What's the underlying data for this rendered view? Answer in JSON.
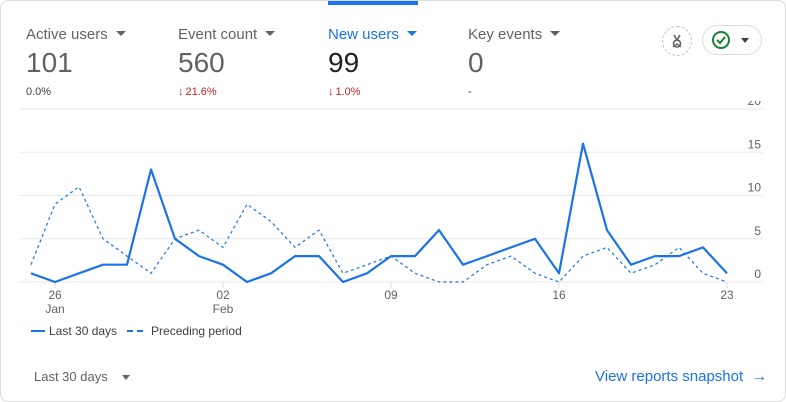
{
  "metrics": [
    {
      "label": "Active users",
      "value": "101",
      "change": "0.0%",
      "direction": "neutral",
      "selected": false
    },
    {
      "label": "Event count",
      "value": "560",
      "change": "21.6%",
      "direction": "down",
      "selected": false
    },
    {
      "label": "New users",
      "value": "99",
      "change": "1.0%",
      "direction": "down",
      "selected": true
    },
    {
      "label": "Key events",
      "value": "0",
      "change": "-",
      "direction": "neutral",
      "selected": false
    }
  ],
  "icons": {
    "insights": "insights-sparkle-icon",
    "status": "check-circle-icon",
    "change_down": "↓",
    "link_arrow": "→"
  },
  "colors": {
    "accent": "#1a73e8",
    "negative": "#c5221f",
    "status_ok": "#188038"
  },
  "chart_data": {
    "type": "line",
    "x": [
      "Jan 25",
      "Jan 26",
      "Jan 27",
      "Jan 28",
      "Jan 29",
      "Jan 30",
      "Jan 31",
      "Feb 01",
      "Feb 02",
      "Feb 03",
      "Feb 04",
      "Feb 05",
      "Feb 06",
      "Feb 07",
      "Feb 08",
      "Feb 09",
      "Feb 10",
      "Feb 11",
      "Feb 12",
      "Feb 13",
      "Feb 14",
      "Feb 15",
      "Feb 16",
      "Feb 17",
      "Feb 18",
      "Feb 19",
      "Feb 20",
      "Feb 21",
      "Feb 22",
      "Feb 23"
    ],
    "series": [
      {
        "name": "Last 30 days",
        "style": "solid",
        "values": [
          1,
          0,
          1,
          2,
          2,
          13,
          5,
          3,
          2,
          0,
          1,
          3,
          3,
          0,
          1,
          3,
          3,
          6,
          2,
          3,
          4,
          5,
          1,
          16,
          6,
          2,
          3,
          3,
          4,
          1
        ]
      },
      {
        "name": "Preceding period",
        "style": "dashed",
        "values": [
          2,
          9,
          11,
          5,
          3,
          1,
          5,
          6,
          4,
          9,
          7,
          4,
          6,
          1,
          2,
          3,
          1,
          0,
          0,
          2,
          3,
          1,
          0,
          3,
          4,
          1,
          2,
          4,
          1,
          0
        ]
      }
    ],
    "x_ticks": [
      {
        "index": 1,
        "label": "26",
        "sublabel": "Jan"
      },
      {
        "index": 8,
        "label": "02",
        "sublabel": "Feb"
      },
      {
        "index": 15,
        "label": "09",
        "sublabel": ""
      },
      {
        "index": 22,
        "label": "16",
        "sublabel": ""
      },
      {
        "index": 29,
        "label": "23",
        "sublabel": ""
      }
    ],
    "y_ticks": [
      0,
      5,
      10,
      15,
      20
    ],
    "ylim": [
      0,
      20
    ],
    "grid": true,
    "legend_position": "bottom-left"
  },
  "footer": {
    "date_range": "Last 30 days",
    "view_link": "View reports snapshot"
  }
}
